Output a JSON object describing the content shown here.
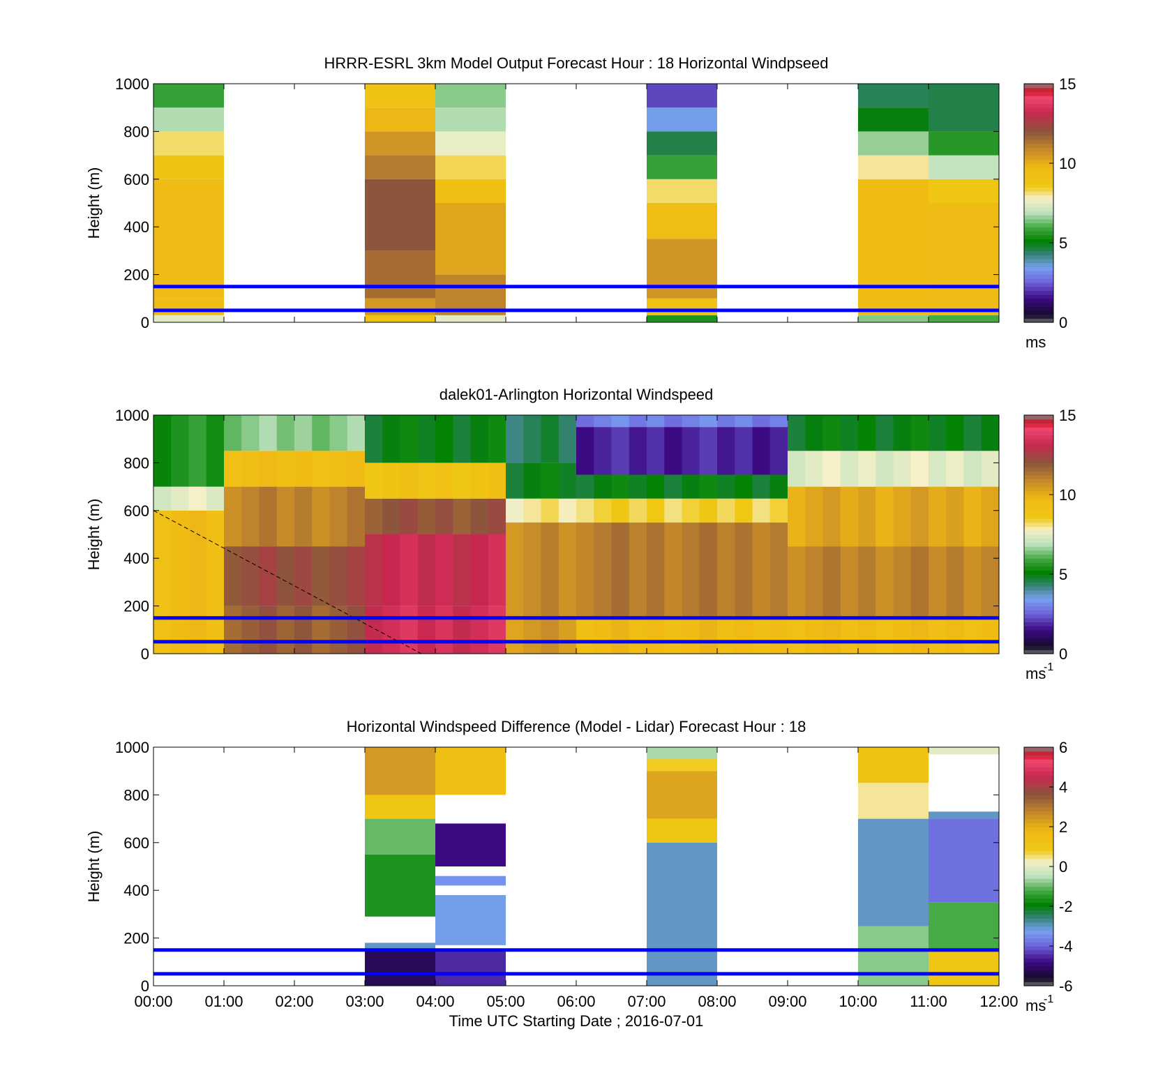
{
  "figure": {
    "xlabel": "Time UTC  Starting Date ; 2016-07-01",
    "x_ticks": [
      "00:00",
      "01:00",
      "02:00",
      "03:00",
      "04:00",
      "05:00",
      "06:00",
      "07:00",
      "08:00",
      "09:00",
      "10:00",
      "11:00",
      "12:00"
    ],
    "reference_line_color": "#0000ff",
    "reference_heights_m": [
      50,
      150
    ]
  },
  "chart_data": [
    {
      "type": "heatmap",
      "title": "HRRR-ESRL 3km Model Output   Forecast Hour : 18 Horizontal Windpseed",
      "xlabel": "",
      "ylabel": "Height (m)",
      "ylim": [
        0,
        1000
      ],
      "y_ticks": [
        "0",
        "200",
        "400",
        "600",
        "800",
        "1000"
      ],
      "colorbar": {
        "min": 0,
        "max": 15,
        "ticks": [
          "0",
          "5",
          "10",
          "15"
        ],
        "label": "ms",
        "label_sup": ""
      },
      "cells": [
        {
          "x_hours": [
            0,
            1
          ],
          "bands": [
            {
              "y": [
                0,
                30
              ],
              "value": 7.5
            },
            {
              "y": [
                30,
                100
              ],
              "value": 9.5
            },
            {
              "y": [
                100,
                600
              ],
              "value": 9.6
            },
            {
              "y": [
                600,
                700
              ],
              "value": 9.0
            },
            {
              "y": [
                700,
                800
              ],
              "value": 8.2
            },
            {
              "y": [
                800,
                900
              ],
              "value": 6.8
            },
            {
              "y": [
                900,
                1000
              ],
              "value": 5.8
            }
          ]
        },
        {
          "x_hours": [
            3,
            4
          ],
          "bands": [
            {
              "y": [
                0,
                30
              ],
              "value": 9.0
            },
            {
              "y": [
                30,
                100
              ],
              "value": 10.5
            },
            {
              "y": [
                100,
                300
              ],
              "value": 11.5
            },
            {
              "y": [
                300,
                600
              ],
              "value": 12.0
            },
            {
              "y": [
                600,
                700
              ],
              "value": 11.2
            },
            {
              "y": [
                700,
                800
              ],
              "value": 10.6
            },
            {
              "y": [
                800,
                900
              ],
              "value": 9.8
            },
            {
              "y": [
                900,
                1000
              ],
              "value": 9.0
            }
          ]
        },
        {
          "x_hours": [
            4,
            5
          ],
          "bands": [
            {
              "y": [
                0,
                30
              ],
              "value": 7.5
            },
            {
              "y": [
                30,
                200
              ],
              "value": 11.0
            },
            {
              "y": [
                200,
                500
              ],
              "value": 10.2
            },
            {
              "y": [
                500,
                600
              ],
              "value": 9.3
            },
            {
              "y": [
                600,
                700
              ],
              "value": 8.3
            },
            {
              "y": [
                700,
                800
              ],
              "value": 7.6
            },
            {
              "y": [
                800,
                900
              ],
              "value": 6.8
            },
            {
              "y": [
                900,
                1000
              ],
              "value": 6.5
            }
          ]
        },
        {
          "x_hours": [
            7,
            8
          ],
          "bands": [
            {
              "y": [
                0,
                30
              ],
              "value": 5.5
            },
            {
              "y": [
                30,
                100
              ],
              "value": 9.0
            },
            {
              "y": [
                100,
                350
              ],
              "value": 10.6
            },
            {
              "y": [
                350,
                500
              ],
              "value": 9.4
            },
            {
              "y": [
                500,
                600
              ],
              "value": 8.2
            },
            {
              "y": [
                600,
                700
              ],
              "value": 5.8
            },
            {
              "y": [
                700,
                800
              ],
              "value": 4.6
            },
            {
              "y": [
                800,
                900
              ],
              "value": 3.5
            },
            {
              "y": [
                900,
                1000
              ],
              "value": 2.2
            }
          ]
        },
        {
          "x_hours": [
            10,
            11
          ],
          "bands": [
            {
              "y": [
                0,
                30
              ],
              "value": 6.5
            },
            {
              "y": [
                30,
                600
              ],
              "value": 9.5
            },
            {
              "y": [
                600,
                700
              ],
              "value": 8.0
            },
            {
              "y": [
                700,
                800
              ],
              "value": 6.6
            },
            {
              "y": [
                800,
                900
              ],
              "value": 5.0
            },
            {
              "y": [
                900,
                1000
              ],
              "value": 4.5
            }
          ]
        },
        {
          "x_hours": [
            11,
            12
          ],
          "bands": [
            {
              "y": [
                0,
                30
              ],
              "value": 6.0
            },
            {
              "y": [
                30,
                500
              ],
              "value": 9.6
            },
            {
              "y": [
                500,
                600
              ],
              "value": 8.8
            },
            {
              "y": [
                600,
                700
              ],
              "value": 7.0
            },
            {
              "y": [
                700,
                800
              ],
              "value": 5.6
            },
            {
              "y": [
                800,
                1000
              ],
              "value": 4.6
            }
          ]
        }
      ]
    },
    {
      "type": "heatmap",
      "title": "dalek01-Arlington  Horizontal Windspeed",
      "xlabel": "",
      "ylabel": "Height (m)",
      "ylim": [
        0,
        1000
      ],
      "y_ticks": [
        "0",
        "200",
        "400",
        "600",
        "800",
        "1000"
      ],
      "colorbar": {
        "min": 0,
        "max": 15,
        "ticks": [
          "0",
          "5",
          "10",
          "15"
        ],
        "label": "ms",
        "label_sup": "-1"
      },
      "columns_per_hour": 4,
      "profiles": [
        {
          "x_hours": [
            0.0,
            1.0
          ],
          "series": [
            {
              "y": [
                0,
                600
              ],
              "value": 9.5
            },
            {
              "y": [
                600,
                700
              ],
              "value": 7.5
            },
            {
              "y": [
                700,
                1000
              ],
              "value": 5.5
            }
          ]
        },
        {
          "x_hours": [
            1.0,
            3.0
          ],
          "series": [
            {
              "y": [
                0,
                200
              ],
              "value": 11.8
            },
            {
              "y": [
                200,
                450
              ],
              "value": 12.2
            },
            {
              "y": [
                450,
                700
              ],
              "value": 11.0
            },
            {
              "y": [
                700,
                850
              ],
              "value": 9.4
            },
            {
              "y": [
                850,
                1000
              ],
              "value": 6.5
            }
          ]
        },
        {
          "x_hours": [
            3.0,
            5.0
          ],
          "series": [
            {
              "y": [
                0,
                200
              ],
              "value": 13.4
            },
            {
              "y": [
                200,
                500
              ],
              "value": 13.2
            },
            {
              "y": [
                500,
                650
              ],
              "value": 12.0
            },
            {
              "y": [
                650,
                800
              ],
              "value": 9.0
            },
            {
              "y": [
                800,
                1000
              ],
              "value": 5.0
            }
          ]
        },
        {
          "x_hours": [
            5.0,
            6.0
          ],
          "series": [
            {
              "y": [
                0,
                150
              ],
              "value": 10.5
            },
            {
              "y": [
                150,
                550
              ],
              "value": 10.8
            },
            {
              "y": [
                550,
                650
              ],
              "value": 8.0
            },
            {
              "y": [
                650,
                800
              ],
              "value": 5.0
            },
            {
              "y": [
                800,
                1000
              ],
              "value": 4.5
            }
          ]
        },
        {
          "x_hours": [
            6.0,
            9.0
          ],
          "series": [
            {
              "y": [
                0,
                150
              ],
              "value": 9.6
            },
            {
              "y": [
                150,
                550
              ],
              "value": 11.2
            },
            {
              "y": [
                550,
                650
              ],
              "value": 8.4
            },
            {
              "y": [
                650,
                750
              ],
              "value": 5.0
            },
            {
              "y": [
                750,
                950
              ],
              "value": 1.8
            },
            {
              "y": [
                950,
                1000
              ],
              "value": 3.0
            }
          ]
        },
        {
          "x_hours": [
            9.0,
            12.0
          ],
          "series": [
            {
              "y": [
                0,
                150
              ],
              "value": 9.5
            },
            {
              "y": [
                150,
                450
              ],
              "value": 11.0
            },
            {
              "y": [
                450,
                700
              ],
              "value": 10.2
            },
            {
              "y": [
                700,
                850
              ],
              "value": 7.5
            },
            {
              "y": [
                850,
                1000
              ],
              "value": 5.0
            }
          ]
        }
      ],
      "dashed_line": {
        "from": {
          "hour": 0.0,
          "y": 600
        },
        "to": {
          "hour": 3.8,
          "y": 0
        }
      }
    },
    {
      "type": "heatmap",
      "title": "Horizontal Windspeed Difference (Model - Lidar) Forecast Hour : 18",
      "xlabel": "Time UTC  Starting Date ; 2016-07-01",
      "ylabel": "Height (m)",
      "ylim": [
        0,
        1000
      ],
      "y_ticks": [
        "0",
        "200",
        "400",
        "600",
        "800",
        "1000"
      ],
      "colorbar": {
        "min": -6,
        "max": 6,
        "ticks": [
          "-6",
          "-4",
          "-2",
          "0",
          "2",
          "4",
          "6"
        ],
        "label": "ms",
        "label_sup": "-1"
      },
      "cells": [
        {
          "x_hours": [
            3,
            4
          ],
          "bands": [
            {
              "y": [
                0,
                150
              ],
              "value": -5.2
            },
            {
              "y": [
                150,
                180
              ],
              "value": -3.0
            },
            {
              "y": [
                290,
                550
              ],
              "value": -1.6
            },
            {
              "y": [
                550,
                700
              ],
              "value": -1.0
            },
            {
              "y": [
                700,
                800
              ],
              "value": 1.0
            },
            {
              "y": [
                800,
                1000
              ],
              "value": 2.4
            }
          ]
        },
        {
          "x_hours": [
            4,
            5
          ],
          "bands": [
            {
              "y": [
                0,
                150
              ],
              "value": -4.5
            },
            {
              "y": [
                170,
                380
              ],
              "value": -3.2
            },
            {
              "y": [
                420,
                460
              ],
              "value": -3.4
            },
            {
              "y": [
                500,
                680
              ],
              "value": -4.8
            },
            {
              "y": [
                800,
                1000
              ],
              "value": 1.4
            }
          ]
        },
        {
          "x_hours": [
            7,
            8
          ],
          "bands": [
            {
              "y": [
                0,
                600
              ],
              "value": -3.0
            },
            {
              "y": [
                600,
                700
              ],
              "value": 1.0
            },
            {
              "y": [
                700,
                900
              ],
              "value": 2.2
            },
            {
              "y": [
                900,
                950
              ],
              "value": 0.8
            },
            {
              "y": [
                950,
                1000
              ],
              "value": -0.6
            }
          ]
        },
        {
          "x_hours": [
            10,
            11
          ],
          "bands": [
            {
              "y": [
                0,
                250
              ],
              "value": -0.8
            },
            {
              "y": [
                250,
                700
              ],
              "value": -3.0
            },
            {
              "y": [
                700,
                850
              ],
              "value": 0.4
            },
            {
              "y": [
                850,
                1000
              ],
              "value": 1.2
            }
          ]
        },
        {
          "x_hours": [
            11,
            12
          ],
          "bands": [
            {
              "y": [
                0,
                150
              ],
              "value": 1.0
            },
            {
              "y": [
                150,
                350
              ],
              "value": -1.2
            },
            {
              "y": [
                350,
                700
              ],
              "value": -3.8
            },
            {
              "y": [
                700,
                730
              ],
              "value": -3.0
            },
            {
              "y": [
                970,
                1000
              ],
              "value": 0.0
            }
          ]
        }
      ]
    }
  ]
}
